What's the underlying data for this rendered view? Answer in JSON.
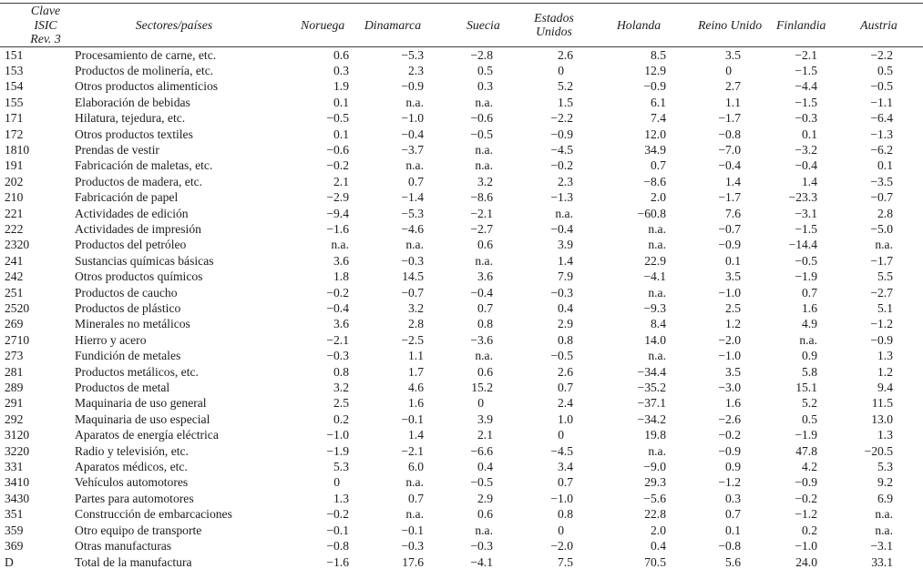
{
  "table": {
    "code_header": "Clave ISIC\nRev. 3",
    "sector_header": "Sectores/países",
    "country_headers": [
      "Noruega",
      "Dinamarca",
      "Suecia",
      "Estados\nUnidos",
      "Holanda",
      "Reino Unido",
      "Finlandia",
      "Austria"
    ],
    "rows": [
      {
        "code": "151",
        "sector": "Procesamiento de carne, etc.",
        "values": [
          "0.6",
          "−5.3",
          "−2.8",
          "2.6",
          "8.5",
          "3.5",
          "−2.1",
          "−2.2"
        ]
      },
      {
        "code": "153",
        "sector": "Productos de molinería, etc.",
        "values": [
          "0.3",
          "2.3",
          "0.5",
          "0",
          "12.9",
          "0",
          "−1.5",
          "0.5"
        ]
      },
      {
        "code": "154",
        "sector": "Otros productos alimenticios",
        "values": [
          "1.9",
          "−0.9",
          "0.3",
          "5.2",
          "−0.9",
          "2.7",
          "−4.4",
          "−0.5"
        ]
      },
      {
        "code": "155",
        "sector": "Elaboración de bebidas",
        "values": [
          "0.1",
          "n.a.",
          "n.a.",
          "1.5",
          "6.1",
          "1.1",
          "−1.5",
          "−1.1"
        ]
      },
      {
        "code": "171",
        "sector": "Hilatura, tejedura, etc.",
        "values": [
          "−0.5",
          "−1.0",
          "−0.6",
          "−2.2",
          "7.4",
          "−1.7",
          "−0.3",
          "−6.4"
        ]
      },
      {
        "code": "172",
        "sector": "Otros productos textiles",
        "values": [
          "0.1",
          "−0.4",
          "−0.5",
          "−0.9",
          "12.0",
          "−0.8",
          "0.1",
          "−1.3"
        ]
      },
      {
        "code": "1810",
        "sector": "Prendas de vestir",
        "values": [
          "−0.6",
          "−3.7",
          "n.a.",
          "−4.5",
          "34.9",
          "−7.0",
          "−3.2",
          "−6.2"
        ]
      },
      {
        "code": "191",
        "sector": "Fabricación de maletas, etc.",
        "values": [
          "−0.2",
          "n.a.",
          "n.a.",
          "−0.2",
          "0.7",
          "−0.4",
          "−0.4",
          "0.1"
        ]
      },
      {
        "code": "202",
        "sector": "Productos de madera, etc.",
        "values": [
          "2.1",
          "0.7",
          "3.2",
          "2.3",
          "−8.6",
          "1.4",
          "1.4",
          "−3.5"
        ]
      },
      {
        "code": "210",
        "sector": "Fabricación de papel",
        "values": [
          "−2.9",
          "−1.4",
          "−8.6",
          "−1.3",
          "2.0",
          "−1.7",
          "−23.3",
          "−0.7"
        ]
      },
      {
        "code": "221",
        "sector": "Actividades de edición",
        "values": [
          "−9.4",
          "−5.3",
          "−2.1",
          "n.a.",
          "−60.8",
          "7.6",
          "−3.1",
          "2.8"
        ]
      },
      {
        "code": "222",
        "sector": "Actividades de impresión",
        "values": [
          "−1.6",
          "−4.6",
          "−2.7",
          "−0.4",
          "n.a.",
          "−0.7",
          "−1.5",
          "−5.0"
        ]
      },
      {
        "code": "2320",
        "sector": "Productos del petróleo",
        "values": [
          "n.a.",
          "n.a.",
          "0.6",
          "3.9",
          "n.a.",
          "−0.9",
          "−14.4",
          "n.a."
        ]
      },
      {
        "code": "241",
        "sector": "Sustancias químicas básicas",
        "values": [
          "3.6",
          "−0.3",
          "n.a.",
          "1.4",
          "22.9",
          "0.1",
          "−0.5",
          "−1.7"
        ]
      },
      {
        "code": "242",
        "sector": "Otros productos químicos",
        "values": [
          "1.8",
          "14.5",
          "3.6",
          "7.9",
          "−4.1",
          "3.5",
          "−1.9",
          "5.5"
        ]
      },
      {
        "code": "251",
        "sector": "Productos de caucho",
        "values": [
          "−0.2",
          "−0.7",
          "−0.4",
          "−0.3",
          "n.a.",
          "−1.0",
          "0.7",
          "−2.7"
        ]
      },
      {
        "code": "2520",
        "sector": "Productos de plástico",
        "values": [
          "−0.4",
          "3.2",
          "0.7",
          "0.4",
          "−9.3",
          "2.5",
          "1.6",
          "5.1"
        ]
      },
      {
        "code": "269",
        "sector": "Minerales no metálicos",
        "values": [
          "3.6",
          "2.8",
          "0.8",
          "2.9",
          "8.4",
          "1.2",
          "4.9",
          "−1.2"
        ]
      },
      {
        "code": "2710",
        "sector": "Hierro y acero",
        "values": [
          "−2.1",
          "−2.5",
          "−3.6",
          "0.8",
          "14.0",
          "−2.0",
          "n.a.",
          "−0.9"
        ]
      },
      {
        "code": "273",
        "sector": "Fundición de metales",
        "values": [
          "−0.3",
          "1.1",
          "n.a.",
          "−0.5",
          "n.a.",
          "−1.0",
          "0.9",
          "1.3"
        ]
      },
      {
        "code": "281",
        "sector": "Productos metálicos, etc.",
        "values": [
          "0.8",
          "1.7",
          "0.6",
          "2.6",
          "−34.4",
          "3.5",
          "5.8",
          "1.2"
        ]
      },
      {
        "code": "289",
        "sector": "Productos de metal",
        "values": [
          "3.2",
          "4.6",
          "15.2",
          "0.7",
          "−35.2",
          "−3.0",
          "15.1",
          "9.4"
        ]
      },
      {
        "code": "291",
        "sector": "Maquinaria de uso general",
        "values": [
          "2.5",
          "1.6",
          "0",
          "2.4",
          "−37.1",
          "1.6",
          "5.2",
          "11.5"
        ]
      },
      {
        "code": "292",
        "sector": "Maquinaria de uso especial",
        "values": [
          "0.2",
          "−0.1",
          "3.9",
          "1.0",
          "−34.2",
          "−2.6",
          "0.5",
          "13.0"
        ]
      },
      {
        "code": "3120",
        "sector": "Aparatos de energía eléctrica",
        "values": [
          "−1.0",
          "1.4",
          "2.1",
          "0",
          "19.8",
          "−0.2",
          "−1.9",
          "1.3"
        ]
      },
      {
        "code": "3220",
        "sector": "Radio y televisión, etc.",
        "values": [
          "−1.9",
          "−2.1",
          "−6.6",
          "−4.5",
          "n.a.",
          "−0.9",
          "47.8",
          "−20.5"
        ]
      },
      {
        "code": "331",
        "sector": "Aparatos médicos, etc.",
        "values": [
          "5.3",
          "6.0",
          "0.4",
          "3.4",
          "−9.0",
          "0.9",
          "4.2",
          "5.3"
        ]
      },
      {
        "code": "3410",
        "sector": "Vehículos automotores",
        "values": [
          "0",
          "n.a.",
          "−0.5",
          "0.7",
          "29.3",
          "−1.2",
          "−0.9",
          "9.2"
        ]
      },
      {
        "code": "3430",
        "sector": "Partes para automotores",
        "values": [
          "1.3",
          "0.7",
          "2.9",
          "−1.0",
          "−5.6",
          "0.3",
          "−0.2",
          "6.9"
        ]
      },
      {
        "code": "351",
        "sector": "Construcción de embarcaciones",
        "values": [
          "−0.2",
          "n.a.",
          "0.6",
          "0.8",
          "22.8",
          "0.7",
          "−1.2",
          "n.a."
        ]
      },
      {
        "code": "359",
        "sector": "Otro equipo de transporte",
        "values": [
          "−0.1",
          "−0.1",
          "n.a.",
          "0",
          "2.0",
          "0.1",
          "0.2",
          "n.a."
        ]
      },
      {
        "code": "369",
        "sector": "Otras manufacturas",
        "values": [
          "−0.8",
          "−0.3",
          "−0.3",
          "−2.0",
          "0.4",
          "−0.8",
          "−1.0",
          "−3.1"
        ]
      },
      {
        "code": "D",
        "sector": "Total de la manufactura",
        "values": [
          "−1.6",
          "17.6",
          "−4.1",
          "7.5",
          "70.5",
          "5.6",
          "24.0",
          "33.1"
        ]
      }
    ]
  }
}
